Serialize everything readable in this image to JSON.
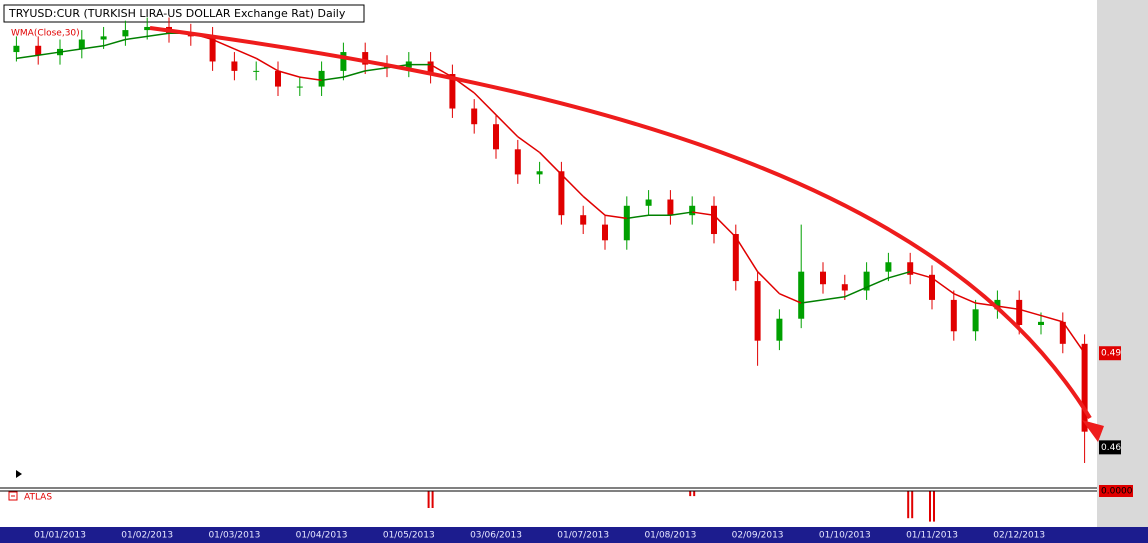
{
  "chart_data": {
    "type": "candlestick",
    "title": "TRYUSD:CUR (TURKISH LIRA-US DOLLAR Exchange Rat) Daily",
    "categories": [
      null,
      null,
      "01/01/2013",
      null,
      null,
      null,
      "01/02/2013",
      null,
      null,
      null,
      "01/03/2013",
      null,
      null,
      null,
      "01/04/2013",
      null,
      null,
      null,
      "01/05/2013",
      null,
      null,
      null,
      "03/06/2013",
      null,
      null,
      null,
      "01/07/2013",
      null,
      null,
      null,
      "01/08/2013",
      null,
      null,
      null,
      "02/09/2013",
      null,
      null,
      null,
      "01/10/2013",
      null,
      null,
      null,
      "01/11/2013",
      null,
      null,
      null,
      "02/12/2013",
      null,
      null,
      null
    ],
    "open": [
      0.586,
      0.588,
      0.585,
      0.587,
      0.59,
      0.591,
      0.593,
      0.594,
      0.592,
      0.591,
      0.583,
      0.58,
      0.58,
      0.575,
      0.575,
      0.58,
      0.586,
      0.582,
      0.581,
      0.583,
      0.579,
      0.568,
      0.563,
      0.555,
      0.547,
      0.548,
      0.534,
      0.531,
      0.526,
      0.537,
      0.539,
      0.534,
      0.537,
      0.528,
      0.513,
      0.494,
      0.501,
      0.516,
      0.512,
      0.51,
      0.516,
      0.519,
      0.515,
      0.507,
      0.497,
      0.504,
      0.507,
      0.499,
      0.5,
      0.493
    ],
    "high": [
      0.591,
      0.591,
      0.59,
      0.593,
      0.594,
      0.596,
      0.597,
      0.597,
      0.595,
      0.594,
      0.586,
      0.583,
      0.583,
      0.578,
      0.583,
      0.589,
      0.589,
      0.585,
      0.586,
      0.586,
      0.582,
      0.571,
      0.566,
      0.558,
      0.551,
      0.551,
      0.537,
      0.534,
      0.54,
      0.542,
      0.542,
      0.54,
      0.54,
      0.531,
      0.516,
      0.504,
      0.531,
      0.519,
      0.515,
      0.519,
      0.522,
      0.522,
      0.518,
      0.51,
      0.507,
      0.51,
      0.51,
      0.503,
      0.503,
      0.496
    ],
    "low": [
      0.583,
      0.582,
      0.582,
      0.584,
      0.587,
      0.588,
      0.59,
      0.589,
      0.588,
      0.58,
      0.577,
      0.577,
      0.572,
      0.572,
      0.572,
      0.577,
      0.579,
      0.578,
      0.578,
      0.576,
      0.565,
      0.56,
      0.552,
      0.544,
      0.544,
      0.531,
      0.528,
      0.523,
      0.523,
      0.534,
      0.531,
      0.531,
      0.525,
      0.51,
      0.486,
      0.491,
      0.498,
      0.509,
      0.507,
      0.507,
      0.513,
      0.512,
      0.504,
      0.494,
      0.494,
      0.501,
      0.496,
      0.496,
      0.49,
      0.455
    ],
    "close": [
      0.588,
      0.585,
      0.587,
      0.59,
      0.591,
      0.593,
      0.594,
      0.592,
      0.591,
      0.583,
      0.58,
      0.58,
      0.575,
      0.575,
      0.58,
      0.586,
      0.582,
      0.581,
      0.583,
      0.579,
      0.568,
      0.563,
      0.555,
      0.547,
      0.548,
      0.534,
      0.531,
      0.526,
      0.537,
      0.539,
      0.534,
      0.537,
      0.528,
      0.513,
      0.494,
      0.501,
      0.516,
      0.512,
      0.51,
      0.516,
      0.519,
      0.515,
      0.507,
      0.497,
      0.504,
      0.507,
      0.499,
      0.5,
      0.493,
      0.465
    ],
    "up_color": "#00a000",
    "down_color": "#e00000",
    "ylim": [
      0.448,
      0.601
    ],
    "wma": {
      "name": "WMA(Close,30)",
      "rising_color": "#008000",
      "falling_color": "#e00000",
      "values": [
        0.584,
        0.585,
        0.586,
        0.587,
        0.588,
        0.59,
        0.591,
        0.592,
        0.592,
        0.59,
        0.587,
        0.584,
        0.58,
        0.578,
        0.577,
        0.578,
        0.58,
        0.581,
        0.582,
        0.582,
        0.578,
        0.573,
        0.566,
        0.559,
        0.554,
        0.547,
        0.54,
        0.534,
        0.533,
        0.534,
        0.534,
        0.535,
        0.534,
        0.527,
        0.516,
        0.509,
        0.506,
        0.507,
        0.508,
        0.511,
        0.514,
        0.516,
        0.514,
        0.509,
        0.506,
        0.505,
        0.504,
        0.502,
        0.5,
        0.49
      ]
    },
    "price_labels": [
      {
        "value": 0.49,
        "color": "#e00000"
      },
      {
        "value": 0.46,
        "color": "#000000"
      }
    ],
    "atlas": {
      "name": "ATLAS",
      "color": "#e00000",
      "values": [
        0,
        0,
        0,
        0,
        0,
        0,
        0,
        0,
        0,
        0,
        0,
        0,
        0,
        0,
        0,
        0,
        0,
        0,
        0,
        -1.0,
        0,
        0,
        0,
        0,
        0,
        0,
        0,
        0,
        0,
        0,
        0,
        -0.3,
        0,
        0,
        0,
        0,
        0,
        0,
        0,
        0,
        0,
        -1.6,
        -1.8,
        0,
        0,
        0,
        0,
        0,
        0,
        0
      ],
      "ylim": [
        -2,
        0
      ],
      "yticks": [
        {
          "value": 0,
          "label": "0.0000"
        }
      ]
    }
  }
}
